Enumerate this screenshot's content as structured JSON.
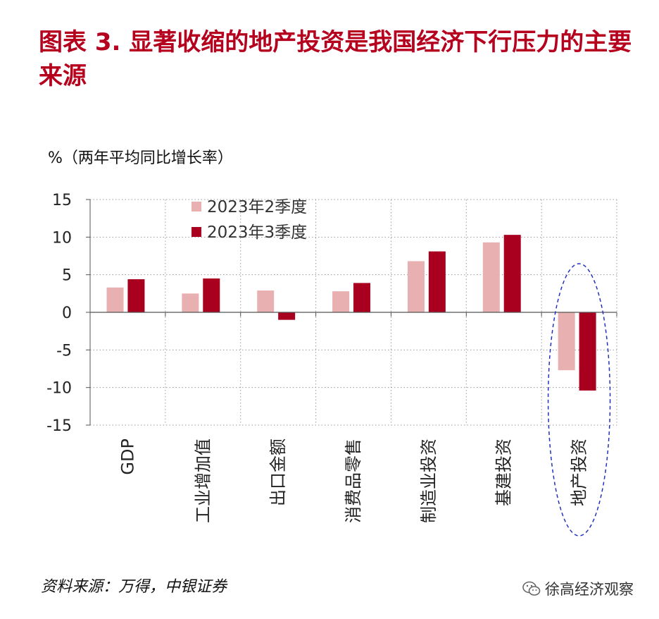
{
  "title": "图表 3. 显著收缩的地产投资是我国经济下行压力的主要来源",
  "unit_label": "%（两年平均同比增长率）",
  "source": "资料来源：万得，中银证券",
  "brand": "徐高经济观察",
  "colors": {
    "title": "#b5001e",
    "q2": "#e8b0b0",
    "q3": "#a8001e",
    "highlight": "#2233bb"
  },
  "chart_data": {
    "type": "bar",
    "title": "显著收缩的地产投资是我国经济下行压力的主要来源",
    "ylabel": "%（两年平均同比增长率）",
    "categories": [
      "GDP",
      "工业增加值",
      "出口金额",
      "消费品零售",
      "制造业投资",
      "基建投资",
      "地产投资"
    ],
    "series": [
      {
        "name": "2023年2季度",
        "values": [
          3.3,
          2.5,
          2.9,
          2.8,
          6.8,
          9.3,
          -7.7
        ]
      },
      {
        "name": "2023年3季度",
        "values": [
          4.4,
          4.5,
          -1.0,
          3.9,
          8.1,
          10.3,
          -10.4
        ]
      }
    ],
    "ylim": [
      -15,
      15
    ],
    "yticks": [
      15,
      10,
      5,
      0,
      -5,
      -10,
      -15
    ],
    "grid": true,
    "legend": "top-left",
    "highlighted_category": "地产投资"
  }
}
